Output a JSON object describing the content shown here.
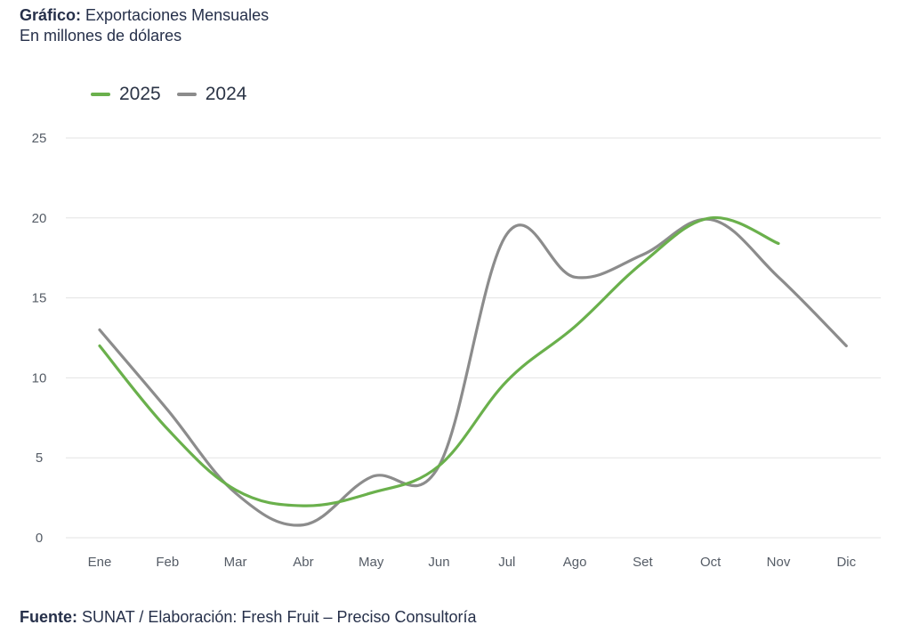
{
  "header": {
    "label": "Gráfico:",
    "title": "Exportaciones Mensuales",
    "subtitle": "En millones de dólares"
  },
  "footer": {
    "label": "Fuente:",
    "text": "SUNAT / Elaboración: Fresh Fruit – Preciso Consultoría"
  },
  "colors": {
    "series_2025": "#6ab04c",
    "series_2024": "#8c8c8c",
    "grid": "#e3e3e3"
  },
  "chart_data": {
    "type": "line",
    "title": "Exportaciones Mensuales",
    "subtitle": "En millones de dólares",
    "xlabel": "",
    "ylabel": "",
    "categories": [
      "Ene",
      "Feb",
      "Mar",
      "Abr",
      "May",
      "Jun",
      "Jul",
      "Ago",
      "Set",
      "Oct",
      "Nov",
      "Dic"
    ],
    "y_ticks": [
      "0",
      "5",
      "10",
      "15",
      "20",
      "25"
    ],
    "ylim": [
      0,
      25
    ],
    "grid": true,
    "legend_position": "top-left",
    "series": [
      {
        "name": "2025",
        "values": [
          12.0,
          6.8,
          3.0,
          2.0,
          2.8,
          4.5,
          9.8,
          13.2,
          17.2,
          20.0,
          18.4,
          null
        ]
      },
      {
        "name": "2024",
        "values": [
          13.0,
          8.0,
          2.8,
          0.8,
          3.8,
          4.5,
          19.0,
          16.3,
          17.7,
          19.9,
          16.3,
          12.0
        ]
      }
    ]
  }
}
